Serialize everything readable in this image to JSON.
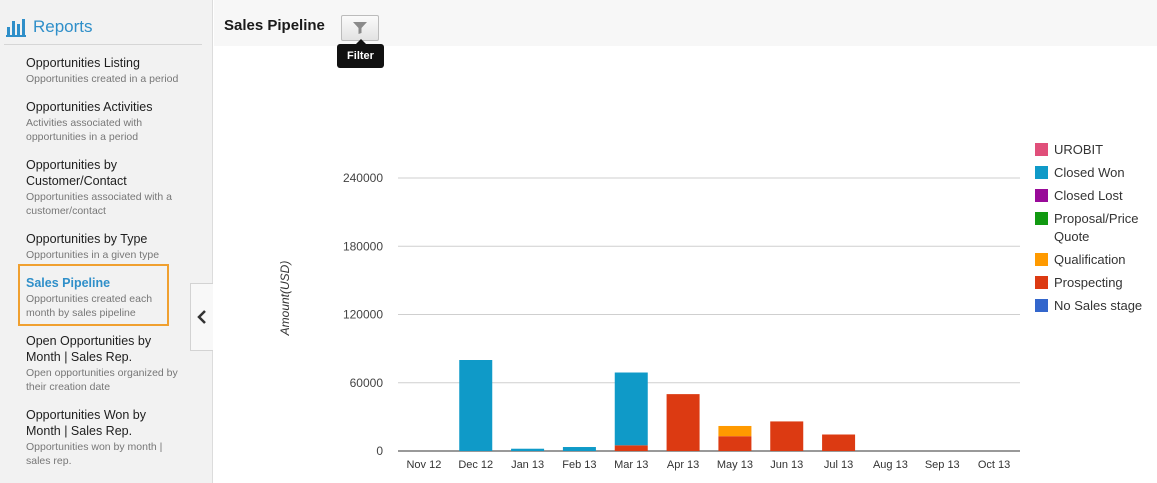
{
  "sidebar": {
    "title": "Reports",
    "items": [
      {
        "label": "Opportunities Listing",
        "desc": "Opportunities created in a period"
      },
      {
        "label": "Opportunities Activities",
        "desc": "Activities associated with opportunities in a period"
      },
      {
        "label": "Opportunities by Customer/Contact",
        "desc": "Opportunities associated with a customer/contact"
      },
      {
        "label": "Opportunities by Type",
        "desc": "Opportunities in a given type"
      },
      {
        "label": "Sales Pipeline",
        "desc": "Opportunities created each month by sales pipeline"
      },
      {
        "label": "Open Opportunities by Month | Sales Rep.",
        "desc": "Open opportunities organized by their creation date"
      },
      {
        "label": "Opportunities Won by Month | Sales Rep.",
        "desc": "Opportunities won by month | sales rep."
      }
    ],
    "active_index": 4
  },
  "header": {
    "title": "Sales Pipeline",
    "filter_tooltip": "Filter"
  },
  "colors": {
    "accent": "#2f8fc9",
    "active_border": "#f0a030"
  },
  "icons": {
    "reports": "bar-chart-icon",
    "filter": "funnel-icon",
    "collapse": "chevron-left-icon"
  },
  "chart_data": {
    "type": "bar",
    "stacked": true,
    "title": "",
    "xlabel": "",
    "ylabel": "Amount(USD)",
    "ylim": [
      0,
      240000
    ],
    "yticks": [
      0,
      60000,
      120000,
      180000,
      240000
    ],
    "grid": true,
    "legend_position": "right",
    "categories": [
      "Nov 12",
      "Dec 12",
      "Jan 13",
      "Feb 13",
      "Mar 13",
      "Apr 13",
      "May 13",
      "Jun 13",
      "Jul 13",
      "Aug 13",
      "Sep 13",
      "Oct 13"
    ],
    "series": [
      {
        "name": "UROBIT",
        "color": "#e04f7a",
        "values": [
          0,
          0,
          0,
          0,
          0,
          0,
          0,
          0,
          0,
          0,
          0,
          0
        ]
      },
      {
        "name": "Closed Won",
        "color": "#0f9ac8",
        "values": [
          0,
          80000,
          2000,
          3500,
          64000,
          0,
          0,
          0,
          0,
          0,
          0,
          0
        ]
      },
      {
        "name": "Closed Lost",
        "color": "#990a99",
        "values": [
          0,
          0,
          0,
          0,
          0,
          0,
          0,
          0,
          0,
          0,
          0,
          0
        ]
      },
      {
        "name": "Proposal/Price Quote",
        "color": "#119911",
        "values": [
          0,
          0,
          0,
          0,
          0,
          0,
          0,
          0,
          0,
          0,
          0,
          0
        ]
      },
      {
        "name": "Qualification",
        "color": "#ff9a00",
        "values": [
          0,
          0,
          0,
          0,
          0,
          0,
          9000,
          0,
          0,
          0,
          0,
          0
        ]
      },
      {
        "name": "Prospecting",
        "color": "#dc3a12",
        "values": [
          0,
          0,
          0,
          0,
          5000,
          50000,
          13000,
          26000,
          14500,
          0,
          0,
          0
        ]
      },
      {
        "name": "No Sales stage",
        "color": "#3366cc",
        "values": [
          0,
          0,
          0,
          0,
          0,
          0,
          0,
          0,
          0,
          0,
          0,
          0
        ]
      }
    ]
  }
}
